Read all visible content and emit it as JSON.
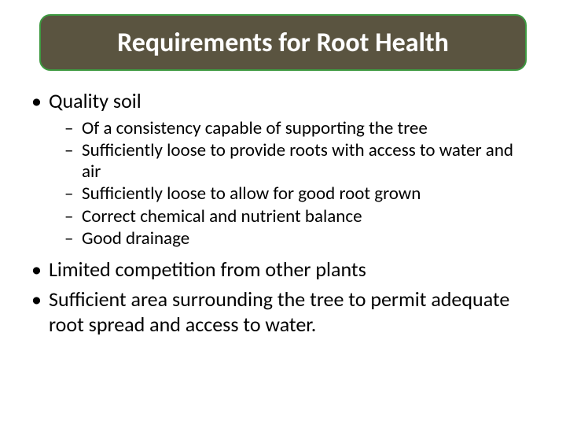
{
  "title": "Requirements for Root Health",
  "colors": {
    "title_bg": "#5a5440",
    "title_border": "#3d9940",
    "title_text": "#ffffff",
    "body_text": "#000000",
    "page_bg": "#ffffff"
  },
  "bullets": {
    "b1": "Quality soil",
    "b1_sub": {
      "s1": "Of a consistency capable of supporting the tree",
      "s2": "Sufficiently loose to provide roots with access to water and air",
      "s3": "Sufficiently loose to allow for good root grown",
      "s4": "Correct chemical and nutrient balance",
      "s5": "Good drainage"
    },
    "b2": "Limited competition from other plants",
    "b3": "Sufficient area surrounding the tree to permit adequate root spread and access to water."
  }
}
